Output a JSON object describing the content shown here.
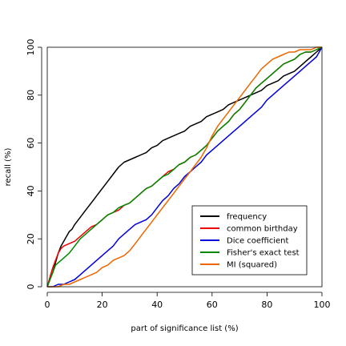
{
  "chart_data": {
    "type": "line",
    "title": "",
    "xlabel": "part of significance list (%)",
    "ylabel": "recall (%)",
    "xlim": [
      0,
      100
    ],
    "ylim": [
      0,
      100
    ],
    "xticks": [
      0,
      20,
      40,
      60,
      80,
      100
    ],
    "yticks": [
      0,
      20,
      40,
      60,
      80,
      100
    ],
    "grid": false,
    "legend_position": "bottom-right",
    "series": [
      {
        "name": "frequency",
        "color": "#000000",
        "x": [
          0,
          1,
          2,
          3,
          4,
          5,
          6,
          7,
          8,
          9,
          10,
          12,
          14,
          16,
          18,
          20,
          22,
          24,
          26,
          28,
          30,
          32,
          34,
          36,
          38,
          40,
          42,
          44,
          46,
          48,
          50,
          52,
          54,
          56,
          58,
          60,
          62,
          64,
          66,
          68,
          70,
          72,
          74,
          76,
          78,
          80,
          82,
          84,
          86,
          88,
          90,
          92,
          94,
          96,
          98,
          100
        ],
        "y": [
          0,
          3,
          6,
          10,
          14,
          17,
          19,
          21,
          23,
          24,
          26,
          29,
          32,
          35,
          38,
          41,
          44,
          47,
          50,
          52,
          53,
          54,
          55,
          56,
          58,
          59,
          61,
          62,
          63,
          64,
          65,
          67,
          68,
          69,
          71,
          72,
          73,
          74,
          76,
          77,
          78,
          79,
          80,
          81,
          82,
          84,
          85,
          86,
          88,
          89,
          90,
          92,
          94,
          96,
          98,
          100
        ]
      },
      {
        "name": "common birthday",
        "color": "#ee0000",
        "x": [
          0,
          1,
          2,
          3,
          4,
          5,
          6,
          8,
          10,
          12,
          14,
          16,
          18,
          20,
          22,
          24,
          26,
          28,
          30,
          32,
          34,
          36,
          38,
          40,
          42,
          44,
          46,
          48,
          50,
          52,
          54,
          56,
          58,
          60,
          62,
          64,
          66,
          68,
          70,
          72,
          74,
          76,
          78,
          80,
          82,
          84,
          86,
          88,
          90,
          92,
          94,
          96,
          98,
          100
        ],
        "y": [
          0,
          4,
          8,
          11,
          14,
          16,
          17,
          18,
          19,
          21,
          23,
          25,
          26,
          28,
          30,
          31,
          32,
          34,
          35,
          37,
          39,
          41,
          42,
          44,
          46,
          48,
          49,
          51,
          52,
          54,
          55,
          57,
          59,
          62,
          65,
          67,
          69,
          72,
          74,
          77,
          80,
          83,
          85,
          87,
          89,
          91,
          93,
          94,
          95,
          97,
          98,
          98,
          99,
          100
        ]
      },
      {
        "name": "Dice coefficient",
        "color": "#0000dd",
        "x": [
          0,
          2,
          4,
          6,
          8,
          10,
          12,
          14,
          16,
          18,
          20,
          22,
          24,
          26,
          28,
          30,
          32,
          34,
          36,
          38,
          40,
          42,
          44,
          46,
          48,
          50,
          52,
          54,
          56,
          58,
          60,
          62,
          64,
          66,
          68,
          70,
          72,
          74,
          76,
          78,
          80,
          82,
          84,
          86,
          88,
          90,
          92,
          94,
          96,
          98,
          100
        ],
        "y": [
          0,
          0,
          1,
          1,
          2,
          3,
          5,
          7,
          9,
          11,
          13,
          15,
          17,
          20,
          22,
          24,
          26,
          27,
          28,
          30,
          33,
          36,
          38,
          41,
          43,
          46,
          48,
          50,
          52,
          55,
          57,
          59,
          61,
          63,
          65,
          67,
          69,
          71,
          73,
          75,
          78,
          80,
          82,
          84,
          86,
          88,
          90,
          92,
          94,
          96,
          100
        ]
      },
      {
        "name": "Fisher's exact test",
        "color": "#008800",
        "x": [
          0,
          1,
          2,
          3,
          4,
          5,
          6,
          7,
          8,
          10,
          12,
          14,
          16,
          18,
          20,
          22,
          24,
          26,
          28,
          30,
          32,
          34,
          36,
          38,
          40,
          42,
          44,
          46,
          48,
          50,
          52,
          54,
          56,
          58,
          60,
          62,
          64,
          66,
          68,
          70,
          72,
          74,
          76,
          78,
          80,
          82,
          84,
          86,
          88,
          90,
          92,
          94,
          96,
          98,
          100
        ],
        "y": [
          0,
          3,
          6,
          9,
          10,
          11,
          12,
          13,
          14,
          17,
          20,
          22,
          24,
          26,
          28,
          30,
          31,
          33,
          34,
          35,
          37,
          39,
          41,
          42,
          44,
          46,
          47,
          49,
          51,
          52,
          54,
          55,
          57,
          59,
          62,
          65,
          67,
          69,
          72,
          74,
          77,
          80,
          83,
          85,
          87,
          89,
          91,
          93,
          94,
          95,
          97,
          98,
          98,
          99,
          100
        ]
      },
      {
        "name": "MI (squared)",
        "color": "#ee6600",
        "x": [
          0,
          2,
          4,
          6,
          8,
          10,
          12,
          14,
          16,
          18,
          20,
          22,
          24,
          26,
          28,
          30,
          32,
          34,
          36,
          38,
          40,
          42,
          44,
          46,
          48,
          50,
          52,
          54,
          56,
          58,
          60,
          62,
          64,
          66,
          68,
          70,
          72,
          74,
          76,
          78,
          80,
          82,
          84,
          86,
          88,
          90,
          92,
          94,
          96,
          98,
          100
        ],
        "y": [
          0,
          0,
          0,
          1,
          1,
          2,
          3,
          4,
          5,
          6,
          8,
          9,
          11,
          12,
          13,
          15,
          18,
          21,
          24,
          27,
          30,
          33,
          36,
          39,
          42,
          45,
          48,
          51,
          54,
          58,
          63,
          67,
          70,
          73,
          76,
          79,
          82,
          85,
          88,
          91,
          93,
          95,
          96,
          97,
          98,
          98,
          99,
          99,
          99,
          100,
          100
        ]
      }
    ]
  }
}
